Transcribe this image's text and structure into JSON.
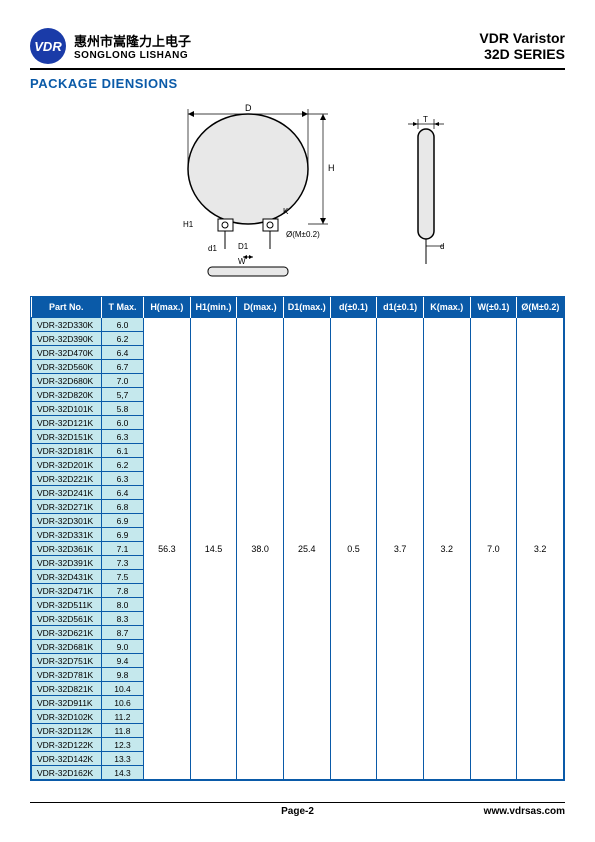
{
  "header": {
    "logo_text": "VDR",
    "company_cn": "惠州市嵩隆力上电子",
    "company_en": "SONGLONG LISHANG",
    "product_line1": "VDR   Varistor",
    "product_line2": "32D  SERIES"
  },
  "section_title": "PACKAGE DIENSIONS",
  "diagram": {
    "labels": [
      "D",
      "H",
      "K",
      "H1",
      "d1",
      "D1",
      "Ø(M±0.2)",
      "W",
      "T",
      "d"
    ]
  },
  "table": {
    "headers": [
      "Part No.",
      "T Max.",
      "H(max.)",
      "H1(min.)",
      "D(max.)",
      "D1(max.)",
      "d(±0.1)",
      "d1(±0.1)",
      "K(max.)",
      "W(±0.1)",
      "Ø(M±0.2)"
    ],
    "merged_values": [
      "56.3",
      "14.5",
      "38.0",
      "25.4",
      "0.5",
      "3.7",
      "3.2",
      "7.0",
      "3.2"
    ],
    "rows": [
      {
        "part": "VDR-32D330K",
        "tmax": "6.0"
      },
      {
        "part": "VDR-32D390K",
        "tmax": "6.2"
      },
      {
        "part": "VDR-32D470K",
        "tmax": "6.4"
      },
      {
        "part": "VDR-32D560K",
        "tmax": "6.7"
      },
      {
        "part": "VDR-32D680K",
        "tmax": "7.0"
      },
      {
        "part": "VDR-32D820K",
        "tmax": "5,7"
      },
      {
        "part": "VDR-32D101K",
        "tmax": "5.8"
      },
      {
        "part": "VDR-32D121K",
        "tmax": "6.0"
      },
      {
        "part": "VDR-32D151K",
        "tmax": "6.3"
      },
      {
        "part": "VDR-32D181K",
        "tmax": "6.1"
      },
      {
        "part": "VDR-32D201K",
        "tmax": "6.2"
      },
      {
        "part": "VDR-32D221K",
        "tmax": "6.3"
      },
      {
        "part": "VDR-32D241K",
        "tmax": "6.4"
      },
      {
        "part": "VDR-32D271K",
        "tmax": "6.8"
      },
      {
        "part": "VDR-32D301K",
        "tmax": "6.9"
      },
      {
        "part": "VDR-32D331K",
        "tmax": "6.9"
      },
      {
        "part": "VDR-32D361K",
        "tmax": "7.1"
      },
      {
        "part": "VDR-32D391K",
        "tmax": "7.3"
      },
      {
        "part": "VDR-32D431K",
        "tmax": "7.5"
      },
      {
        "part": "VDR-32D471K",
        "tmax": "7.8"
      },
      {
        "part": "VDR-32D511K",
        "tmax": "8.0"
      },
      {
        "part": "VDR-32D561K",
        "tmax": "8.3"
      },
      {
        "part": "VDR-32D621K",
        "tmax": "8.7"
      },
      {
        "part": "VDR-32D681K",
        "tmax": "9.0"
      },
      {
        "part": "VDR-32D751K",
        "tmax": "9.4"
      },
      {
        "part": "VDR-32D781K",
        "tmax": "9.8"
      },
      {
        "part": "VDR-32D821K",
        "tmax": "10.4"
      },
      {
        "part": "VDR-32D911K",
        "tmax": "10.6"
      },
      {
        "part": "VDR-32D102K",
        "tmax": "11.2"
      },
      {
        "part": "VDR-32D112K",
        "tmax": "11.8"
      },
      {
        "part": "VDR-32D122K",
        "tmax": "12.3"
      },
      {
        "part": "VDR-32D142K",
        "tmax": "13.3"
      },
      {
        "part": "VDR-32D162K",
        "tmax": "14.3"
      }
    ]
  },
  "footer": {
    "page": "Page-2",
    "url": "www.vdrsas.com"
  },
  "colors": {
    "brand_blue": "#0a5aa8",
    "cell_bg": "#c5e8ed",
    "logo_blue": "#1a3ba8"
  }
}
